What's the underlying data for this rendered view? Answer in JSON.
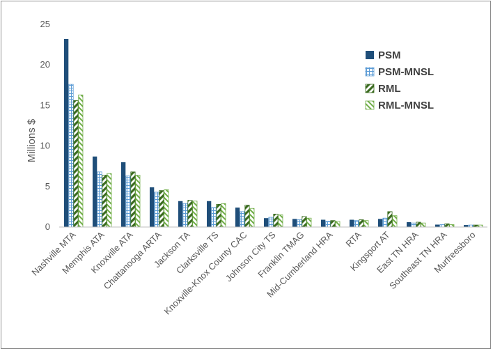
{
  "chart_data": {
    "type": "bar",
    "title": "",
    "xlabel": "",
    "ylabel": "Millions $",
    "ylim": [
      0,
      25
    ],
    "yticks": [
      0,
      5,
      10,
      15,
      20,
      25
    ],
    "grid": false,
    "legend_position": "top-right",
    "categories": [
      "Nashville MTA",
      "Memphis ATA",
      "Knoxville ATA",
      "Chattanooga ARTA",
      "Jackson TA",
      "Clarksville TS",
      "Knoxville-Knox County CAC",
      "Johnson City TS",
      "Franklin TMAG",
      "Mid-Cumberland HRA",
      "RTA",
      "Kingsport AT",
      "East TN HRA",
      "Southeast TN HRA",
      "Murfreesboro"
    ],
    "series": [
      {
        "name": "PSM",
        "color": "#1f4e79",
        "pattern": "solid",
        "values": [
          23.2,
          8.7,
          8.0,
          4.9,
          3.2,
          3.2,
          2.4,
          1.1,
          1.0,
          0.9,
          0.9,
          1.0,
          0.6,
          0.3,
          0.25
        ]
      },
      {
        "name": "PSM-MNSL",
        "color": "#5b9bd5",
        "pattern": "grid",
        "values": [
          17.6,
          6.8,
          6.3,
          4.3,
          2.9,
          2.4,
          1.9,
          1.2,
          0.9,
          0.7,
          0.8,
          1.1,
          0.5,
          0.3,
          0.25
        ]
      },
      {
        "name": "RML",
        "color": "#3a6b1f",
        "pattern": "wide-diagonal",
        "values": [
          15.6,
          6.4,
          6.8,
          4.5,
          3.3,
          2.8,
          2.7,
          1.6,
          1.3,
          0.8,
          0.9,
          1.9,
          0.6,
          0.4,
          0.25
        ]
      },
      {
        "name": "RML-MNSL",
        "color": "#70ad47",
        "pattern": "light-diagonal",
        "values": [
          16.3,
          6.6,
          6.4,
          4.6,
          3.2,
          2.9,
          2.3,
          1.5,
          1.1,
          0.7,
          0.8,
          1.4,
          0.5,
          0.3,
          0.25
        ]
      }
    ]
  }
}
